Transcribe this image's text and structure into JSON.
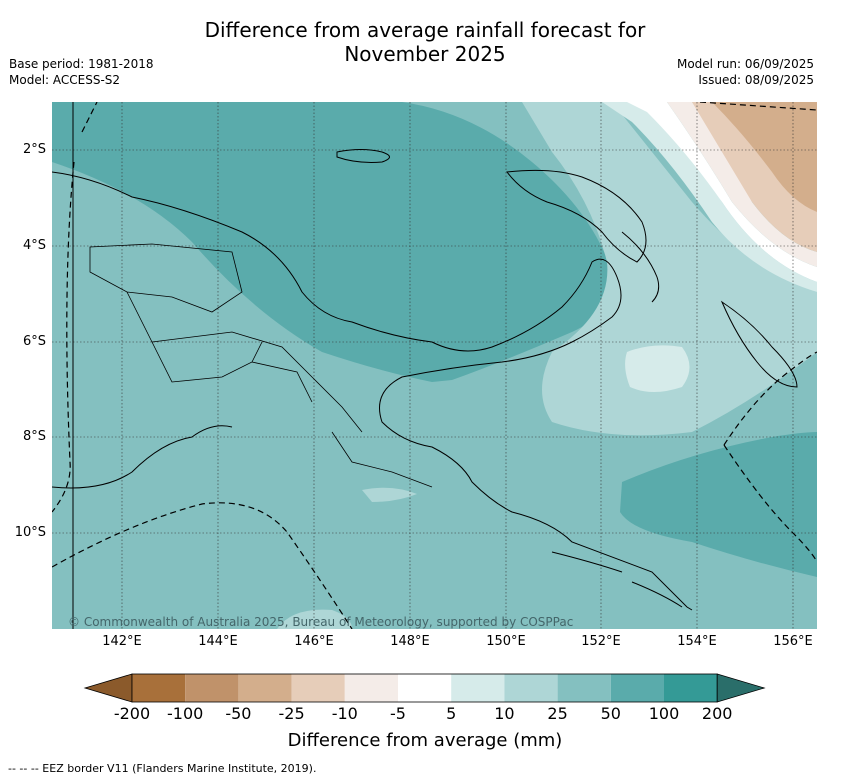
{
  "title_line1": "Difference from average rainfall forecast for",
  "title_line2": "November 2025",
  "meta_left": {
    "base_period": "Base period: 1981-2018",
    "model": "Model: ACCESS-S2"
  },
  "meta_right": {
    "model_run": "Model run: 06/09/2025",
    "issued": "Issued: 08/09/2025"
  },
  "x_ticks": [
    "142°E",
    "144°E",
    "146°E",
    "148°E",
    "150°E",
    "152°E",
    "154°E",
    "156°E"
  ],
  "y_ticks": [
    "2°S",
    "4°S",
    "6°S",
    "8°S",
    "10°S"
  ],
  "copyright": "© Commonwealth of Australia 2025, Bureau of Meteorology, supported by COSPPac",
  "colorbar": {
    "labels": [
      "-200",
      "-100",
      "-50",
      "-25",
      "-10",
      "-5",
      "5",
      "10",
      "25",
      "50",
      "100",
      "200"
    ],
    "colors": [
      "#8b5a2b",
      "#a8703a",
      "#c0926a",
      "#d3ae8c",
      "#e6cdb9",
      "#f4ece8",
      "#ffffff",
      "#d6ebea",
      "#aed6d6",
      "#84c0c0",
      "#5aabab",
      "#349a96",
      "#2a6e6a"
    ],
    "title": "Difference from average (mm)"
  },
  "eez_legend": "--  --  -- EEZ border V11 (Flanders Marine Institute, 2019)."
}
